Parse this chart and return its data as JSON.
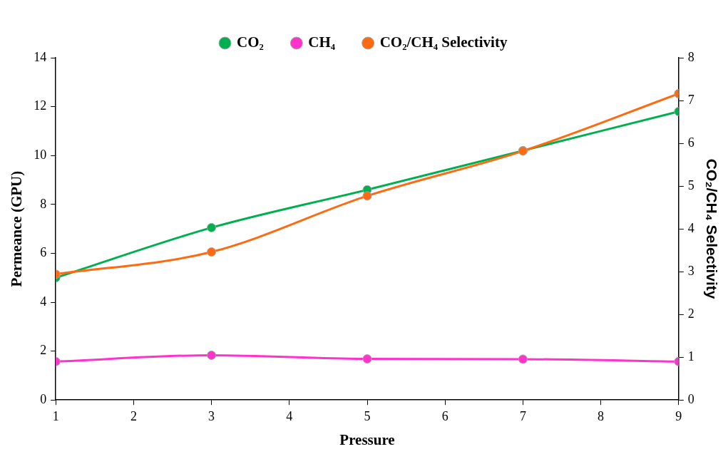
{
  "chart_data": {
    "type": "line",
    "xlabel": "Pressure",
    "ylabel": "Permeance (GPU)",
    "y2label": "CO₂/CH₄ Selectivity",
    "x": [
      1,
      3,
      5,
      7,
      9
    ],
    "series": [
      {
        "name": "CO₂",
        "color": "#00b050",
        "values": [
          5.0,
          7.05,
          8.6,
          10.2,
          11.8
        ]
      },
      {
        "name": "CH₄",
        "color": "#ff33cc",
        "values": [
          1.57,
          1.83,
          1.68,
          1.67,
          1.57
        ]
      },
      {
        "name": "CO₂/CH₄ Selectivity",
        "color": "#ff6a10",
        "axis": "y2",
        "values": [
          2.94,
          3.46,
          4.77,
          5.82,
          7.16
        ]
      }
    ],
    "xlim": [
      1,
      9
    ],
    "xticks": [
      1,
      2,
      3,
      4,
      5,
      6,
      7,
      8,
      9
    ],
    "ylim": [
      0,
      14
    ],
    "yticks": [
      0,
      2,
      4,
      6,
      8,
      10,
      12,
      14
    ],
    "y2lim": [
      0,
      8
    ],
    "y2ticks": [
      0,
      1,
      2,
      3,
      4,
      5,
      6,
      7,
      8
    ],
    "legend": "top",
    "grid": false,
    "marker": "circle",
    "line_style": "solid"
  }
}
